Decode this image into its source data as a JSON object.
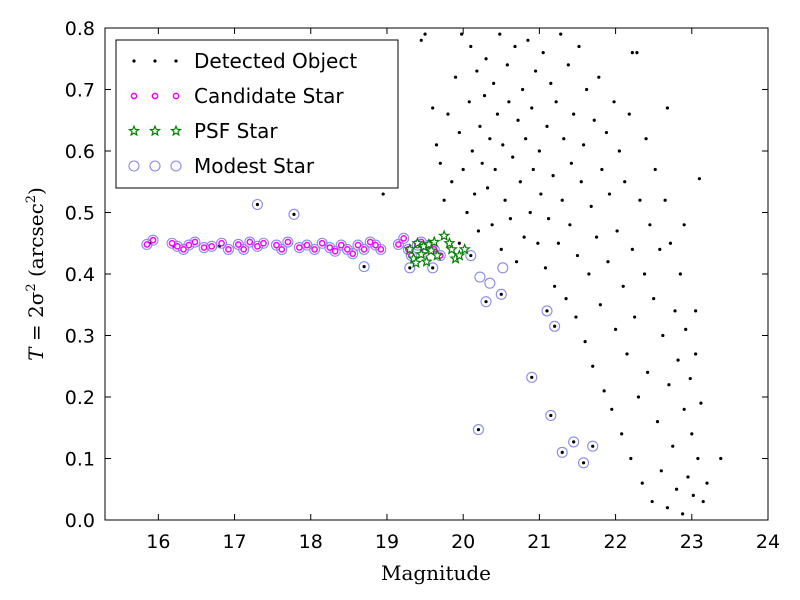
{
  "chart_data": {
    "type": "scatter",
    "xlabel": "Magnitude",
    "ylabel": {
      "prefix": "T",
      "equation": " = 2σ",
      "exponent": "2",
      "unit_open": " (arcsec",
      "unit_exponent": "2",
      "unit_close": ")"
    },
    "xlim": [
      15.3,
      24
    ],
    "ylim": [
      0.0,
      0.8
    ],
    "xticks": [
      "16",
      "17",
      "18",
      "19",
      "20",
      "21",
      "22",
      "23",
      "24"
    ],
    "yticks": [
      "0.0",
      "0.1",
      "0.2",
      "0.3",
      "0.4",
      "0.5",
      "0.6",
      "0.7",
      "0.8"
    ],
    "grid": false,
    "legend_position": "top-left",
    "colors": {
      "detected": "#000000",
      "candidate": "#ff00ff",
      "psf": "#008000",
      "modest": "#8a8aee"
    },
    "series": [
      {
        "name": "Detected Object",
        "marker": "dot",
        "points": [
          [
            15.9,
            0.45
          ],
          [
            16.2,
            0.445
          ],
          [
            16.8,
            0.445
          ],
          [
            17.3,
            0.513
          ],
          [
            17.78,
            0.497
          ],
          [
            18.3,
            0.44
          ],
          [
            18.7,
            0.412
          ],
          [
            18.95,
            0.53
          ],
          [
            19.3,
            0.41
          ],
          [
            19.5,
            0.44
          ],
          [
            19.6,
            0.41
          ],
          [
            19.95,
            0.45
          ],
          [
            20.1,
            0.43
          ],
          [
            20.2,
            0.147
          ],
          [
            20.3,
            0.355
          ],
          [
            20.5,
            0.367
          ],
          [
            20.9,
            0.232
          ],
          [
            21.1,
            0.34
          ],
          [
            21.15,
            0.17
          ],
          [
            21.2,
            0.315
          ],
          [
            21.3,
            0.11
          ],
          [
            21.45,
            0.127
          ],
          [
            21.58,
            0.093
          ],
          [
            21.7,
            0.12
          ],
          [
            19.45,
            0.78
          ],
          [
            19.5,
            0.79
          ],
          [
            19.6,
            0.67
          ],
          [
            19.65,
            0.61
          ],
          [
            19.7,
            0.58
          ],
          [
            19.75,
            0.52
          ],
          [
            19.8,
            0.66
          ],
          [
            19.85,
            0.55
          ],
          [
            19.9,
            0.72
          ],
          [
            19.95,
            0.63
          ],
          [
            19.98,
            0.79
          ],
          [
            20.0,
            0.57
          ],
          [
            20.05,
            0.5
          ],
          [
            20.08,
            0.68
          ],
          [
            20.1,
            0.77
          ],
          [
            20.12,
            0.6
          ],
          [
            20.15,
            0.53
          ],
          [
            20.18,
            0.73
          ],
          [
            20.2,
            0.47
          ],
          [
            20.22,
            0.64
          ],
          [
            20.25,
            0.58
          ],
          [
            20.28,
            0.69
          ],
          [
            20.3,
            0.75
          ],
          [
            20.32,
            0.54
          ],
          [
            20.35,
            0.62
          ],
          [
            20.38,
            0.48
          ],
          [
            20.4,
            0.71
          ],
          [
            20.42,
            0.57
          ],
          [
            20.45,
            0.66
          ],
          [
            20.48,
            0.79
          ],
          [
            20.5,
            0.44
          ],
          [
            20.52,
            0.61
          ],
          [
            20.55,
            0.52
          ],
          [
            20.58,
            0.74
          ],
          [
            20.6,
            0.68
          ],
          [
            20.62,
            0.49
          ],
          [
            20.65,
            0.59
          ],
          [
            20.68,
            0.77
          ],
          [
            20.7,
            0.42
          ],
          [
            20.72,
            0.65
          ],
          [
            20.75,
            0.55
          ],
          [
            20.78,
            0.7
          ],
          [
            20.8,
            0.46
          ],
          [
            20.82,
            0.62
          ],
          [
            20.85,
            0.78
          ],
          [
            20.88,
            0.5
          ],
          [
            20.9,
            0.67
          ],
          [
            20.92,
            0.57
          ],
          [
            20.95,
            0.73
          ],
          [
            20.98,
            0.45
          ],
          [
            21.0,
            0.6
          ],
          [
            21.02,
            0.53
          ],
          [
            21.05,
            0.76
          ],
          [
            21.08,
            0.41
          ],
          [
            21.1,
            0.64
          ],
          [
            21.12,
            0.49
          ],
          [
            21.15,
            0.71
          ],
          [
            21.18,
            0.56
          ],
          [
            21.2,
            0.38
          ],
          [
            21.22,
            0.68
          ],
          [
            21.25,
            0.45
          ],
          [
            21.28,
            0.79
          ],
          [
            21.3,
            0.52
          ],
          [
            21.32,
            0.62
          ],
          [
            21.35,
            0.36
          ],
          [
            21.38,
            0.74
          ],
          [
            21.4,
            0.48
          ],
          [
            21.42,
            0.58
          ],
          [
            21.45,
            0.66
          ],
          [
            21.48,
            0.33
          ],
          [
            21.5,
            0.43
          ],
          [
            21.52,
            0.77
          ],
          [
            21.55,
            0.55
          ],
          [
            21.58,
            0.61
          ],
          [
            21.6,
            0.29
          ],
          [
            21.62,
            0.7
          ],
          [
            21.65,
            0.4
          ],
          [
            21.68,
            0.51
          ],
          [
            21.7,
            0.25
          ],
          [
            21.72,
            0.65
          ],
          [
            21.75,
            0.46
          ],
          [
            21.78,
            0.72
          ],
          [
            21.8,
            0.35
          ],
          [
            21.82,
            0.57
          ],
          [
            21.85,
            0.21
          ],
          [
            21.88,
            0.63
          ],
          [
            21.9,
            0.42
          ],
          [
            21.92,
            0.53
          ],
          [
            21.95,
            0.18
          ],
          [
            21.98,
            0.68
          ],
          [
            22.0,
            0.31
          ],
          [
            22.02,
            0.47
          ],
          [
            22.05,
            0.6
          ],
          [
            22.08,
            0.14
          ],
          [
            22.1,
            0.38
          ],
          [
            22.12,
            0.55
          ],
          [
            22.15,
            0.27
          ],
          [
            22.18,
            0.66
          ],
          [
            22.2,
            0.1
          ],
          [
            22.22,
            0.44
          ],
          [
            22.25,
            0.33
          ],
          [
            22.28,
            0.76
          ],
          [
            22.3,
            0.2
          ],
          [
            22.32,
            0.52
          ],
          [
            22.35,
            0.06
          ],
          [
            22.38,
            0.4
          ],
          [
            22.4,
            0.62
          ],
          [
            22.42,
            0.24
          ],
          [
            22.45,
            0.48
          ],
          [
            22.48,
            0.03
          ],
          [
            22.5,
            0.36
          ],
          [
            22.52,
            0.57
          ],
          [
            22.55,
            0.16
          ],
          [
            22.58,
            0.44
          ],
          [
            22.6,
            0.08
          ],
          [
            22.62,
            0.3
          ],
          [
            22.65,
            0.52
          ],
          [
            22.68,
            0.02
          ],
          [
            22.7,
            0.22
          ],
          [
            22.72,
            0.45
          ],
          [
            22.75,
            0.12
          ],
          [
            22.78,
            0.34
          ],
          [
            22.8,
            0.05
          ],
          [
            22.82,
            0.26
          ],
          [
            22.85,
            0.4
          ],
          [
            22.88,
            0.01
          ],
          [
            22.9,
            0.18
          ],
          [
            22.92,
            0.31
          ],
          [
            22.95,
            0.07
          ],
          [
            22.98,
            0.23
          ],
          [
            23.0,
            0.14
          ],
          [
            23.02,
            0.04
          ],
          [
            23.05,
            0.27
          ],
          [
            23.08,
            0.1
          ],
          [
            23.1,
            0.555
          ],
          [
            23.12,
            0.19
          ],
          [
            23.15,
            0.03
          ],
          [
            23.2,
            0.06
          ],
          [
            23.38,
            0.1
          ],
          [
            22.68,
            0.67
          ],
          [
            22.22,
            0.76
          ],
          [
            23.05,
            0.34
          ],
          [
            22.9,
            0.48
          ]
        ]
      },
      {
        "name": "Candidate Star",
        "marker": "circle-small",
        "points": [
          [
            15.85,
            0.448
          ],
          [
            15.93,
            0.455
          ],
          [
            16.18,
            0.45
          ],
          [
            16.25,
            0.445
          ],
          [
            16.33,
            0.44
          ],
          [
            16.4,
            0.447
          ],
          [
            16.48,
            0.452
          ],
          [
            16.6,
            0.443
          ],
          [
            16.7,
            0.445
          ],
          [
            16.83,
            0.45
          ],
          [
            16.92,
            0.44
          ],
          [
            17.05,
            0.448
          ],
          [
            17.12,
            0.44
          ],
          [
            17.2,
            0.452
          ],
          [
            17.3,
            0.445
          ],
          [
            17.38,
            0.45
          ],
          [
            17.55,
            0.447
          ],
          [
            17.62,
            0.44
          ],
          [
            17.7,
            0.452
          ],
          [
            17.85,
            0.443
          ],
          [
            17.95,
            0.447
          ],
          [
            18.05,
            0.44
          ],
          [
            18.15,
            0.45
          ],
          [
            18.25,
            0.443
          ],
          [
            18.32,
            0.437
          ],
          [
            18.4,
            0.447
          ],
          [
            18.48,
            0.44
          ],
          [
            18.55,
            0.433
          ],
          [
            18.62,
            0.447
          ],
          [
            18.7,
            0.44
          ],
          [
            18.78,
            0.452
          ],
          [
            18.85,
            0.447
          ],
          [
            18.92,
            0.44
          ],
          [
            19.15,
            0.448
          ],
          [
            19.22,
            0.458
          ],
          [
            19.28,
            0.44
          ],
          [
            19.32,
            0.43
          ],
          [
            19.4,
            0.447
          ],
          [
            19.45,
            0.452
          ],
          [
            19.5,
            0.437
          ],
          [
            19.56,
            0.447
          ],
          [
            19.62,
            0.44
          ],
          [
            19.7,
            0.43
          ]
        ]
      },
      {
        "name": "PSF Star",
        "marker": "star",
        "points": [
          [
            19.3,
            0.44
          ],
          [
            19.35,
            0.425
          ],
          [
            19.4,
            0.45
          ],
          [
            19.45,
            0.432
          ],
          [
            19.48,
            0.445
          ],
          [
            19.52,
            0.42
          ],
          [
            19.55,
            0.448
          ],
          [
            19.58,
            0.438
          ],
          [
            19.62,
            0.452
          ],
          [
            19.66,
            0.43
          ],
          [
            19.75,
            0.462
          ],
          [
            19.85,
            0.44
          ],
          [
            19.9,
            0.425
          ],
          [
            19.95,
            0.43
          ],
          [
            20.02,
            0.44
          ],
          [
            19.82,
            0.45
          ],
          [
            19.38,
            0.418
          ]
        ]
      },
      {
        "name": "Modest Star",
        "marker": "circle-open",
        "points": [
          [
            15.85,
            0.448
          ],
          [
            15.93,
            0.455
          ],
          [
            16.18,
            0.45
          ],
          [
            16.25,
            0.445
          ],
          [
            16.33,
            0.44
          ],
          [
            16.4,
            0.447
          ],
          [
            16.48,
            0.452
          ],
          [
            16.6,
            0.443
          ],
          [
            16.7,
            0.445
          ],
          [
            16.83,
            0.45
          ],
          [
            16.92,
            0.44
          ],
          [
            17.05,
            0.448
          ],
          [
            17.12,
            0.44
          ],
          [
            17.2,
            0.452
          ],
          [
            17.3,
            0.445
          ],
          [
            17.38,
            0.45
          ],
          [
            17.55,
            0.447
          ],
          [
            17.62,
            0.44
          ],
          [
            17.7,
            0.452
          ],
          [
            17.85,
            0.443
          ],
          [
            17.95,
            0.447
          ],
          [
            18.05,
            0.44
          ],
          [
            18.15,
            0.45
          ],
          [
            18.25,
            0.443
          ],
          [
            18.32,
            0.437
          ],
          [
            18.4,
            0.447
          ],
          [
            18.48,
            0.44
          ],
          [
            18.55,
            0.433
          ],
          [
            18.62,
            0.447
          ],
          [
            18.7,
            0.44
          ],
          [
            18.78,
            0.452
          ],
          [
            18.85,
            0.447
          ],
          [
            18.92,
            0.44
          ],
          [
            19.15,
            0.448
          ],
          [
            19.22,
            0.458
          ],
          [
            19.28,
            0.44
          ],
          [
            19.32,
            0.43
          ],
          [
            19.4,
            0.447
          ],
          [
            19.45,
            0.452
          ],
          [
            19.5,
            0.437
          ],
          [
            19.56,
            0.447
          ],
          [
            19.62,
            0.44
          ],
          [
            19.7,
            0.43
          ],
          [
            17.3,
            0.513
          ],
          [
            17.78,
            0.497
          ],
          [
            18.7,
            0.412
          ],
          [
            19.3,
            0.41
          ],
          [
            19.6,
            0.41
          ],
          [
            20.1,
            0.43
          ],
          [
            20.2,
            0.147
          ],
          [
            20.22,
            0.395
          ],
          [
            20.3,
            0.355
          ],
          [
            20.35,
            0.385
          ],
          [
            20.5,
            0.367
          ],
          [
            20.52,
            0.41
          ],
          [
            20.9,
            0.232
          ],
          [
            21.1,
            0.34
          ],
          [
            21.15,
            0.17
          ],
          [
            21.2,
            0.315
          ],
          [
            21.3,
            0.11
          ],
          [
            21.45,
            0.127
          ],
          [
            21.58,
            0.093
          ],
          [
            21.7,
            0.12
          ]
        ]
      }
    ]
  }
}
